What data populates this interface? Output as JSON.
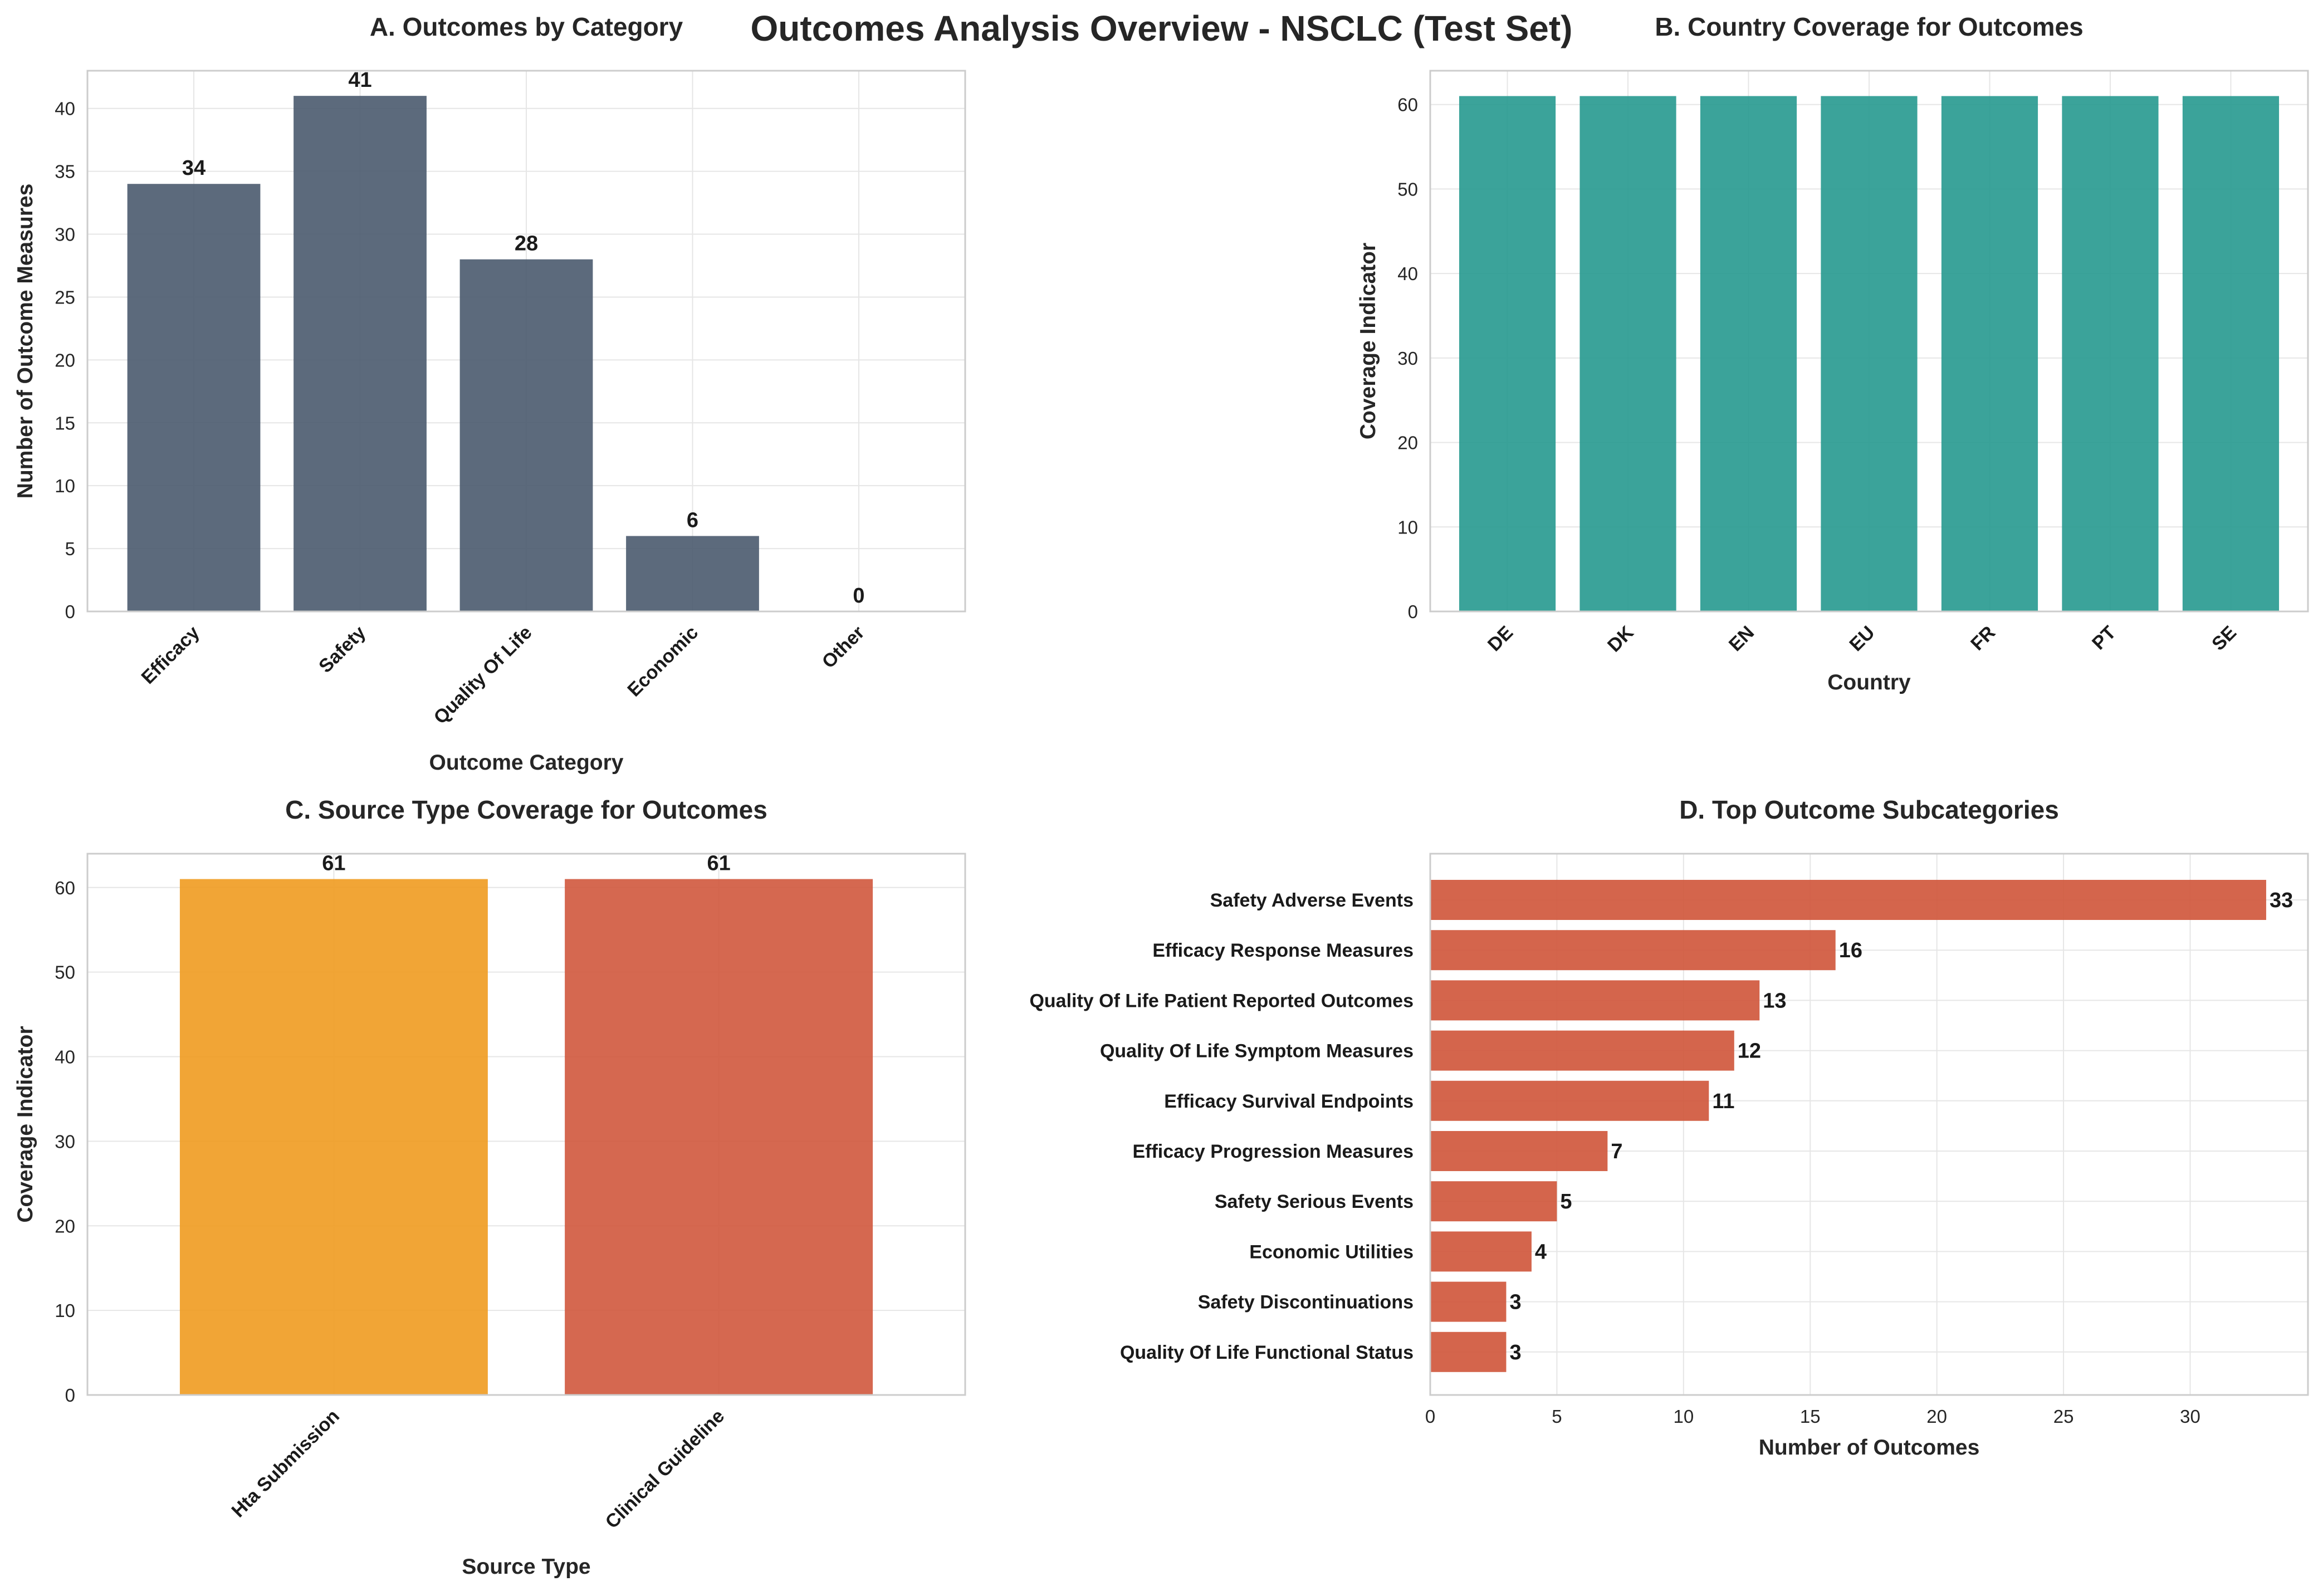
{
  "suptitle": "Outcomes Analysis Overview - NSCLC (Test Set)",
  "charts": [
    {
      "id": "A",
      "type": "bar",
      "orientation": "vertical",
      "title": "A. Outcomes by Category",
      "xlabel": "Outcome Category",
      "ylabel": "Number of Outcome Measures",
      "categories": [
        "Efficacy",
        "Safety",
        "Quality Of Life",
        "Economic",
        "Other"
      ],
      "values": [
        34,
        41,
        28,
        6,
        0
      ],
      "ylim": [
        0,
        43
      ],
      "yticks": [
        0,
        5,
        10,
        15,
        20,
        25,
        30,
        35,
        40
      ],
      "show_value_labels": true,
      "rotate_xticks": true,
      "colors": [
        "#4a5a6e"
      ],
      "grid": true
    },
    {
      "id": "B",
      "type": "bar",
      "orientation": "vertical",
      "title": "B. Country Coverage for Outcomes",
      "xlabel": "Country",
      "ylabel": "Coverage Indicator",
      "categories": [
        "DE",
        "DK",
        "EN",
        "EU",
        "FR",
        "PT",
        "SE"
      ],
      "values": [
        61,
        61,
        61,
        61,
        61,
        61,
        61
      ],
      "ylim": [
        0,
        64
      ],
      "yticks": [
        0,
        10,
        20,
        30,
        40,
        50,
        60
      ],
      "show_value_labels": false,
      "rotate_xticks": true,
      "colors": [
        "#26998f"
      ],
      "grid": true
    },
    {
      "id": "C",
      "type": "bar",
      "orientation": "vertical",
      "title": "C. Source Type Coverage for Outcomes",
      "xlabel": "Source Type",
      "ylabel": "Coverage Indicator",
      "categories": [
        "Hta Submission",
        "Clinical Guideline"
      ],
      "values": [
        61,
        61
      ],
      "ylim": [
        0,
        64
      ],
      "yticks": [
        0,
        10,
        20,
        30,
        40,
        50,
        60
      ],
      "show_value_labels": true,
      "rotate_xticks": true,
      "colors": [
        "#f09b20",
        "#d0583d"
      ],
      "grid": true
    },
    {
      "id": "D",
      "type": "bar",
      "orientation": "horizontal",
      "title": "D. Top Outcome Subcategories",
      "xlabel": "Number of Outcomes",
      "ylabel": "",
      "categories": [
        "Safety Adverse Events",
        "Efficacy Response Measures",
        "Quality Of Life Patient Reported Outcomes",
        "Quality Of Life Symptom Measures",
        "Efficacy Survival Endpoints",
        "Efficacy Progression Measures",
        "Safety Serious Events",
        "Economic Utilities",
        "Safety Discontinuations",
        "Quality Of Life Functional Status"
      ],
      "values": [
        33,
        16,
        13,
        12,
        11,
        7,
        5,
        4,
        3,
        3
      ],
      "xlim": [
        0,
        34.65
      ],
      "xticks": [
        0,
        5,
        10,
        15,
        20,
        25,
        30
      ],
      "show_value_labels": true,
      "colors": [
        "#d0583d"
      ],
      "grid": true
    }
  ]
}
